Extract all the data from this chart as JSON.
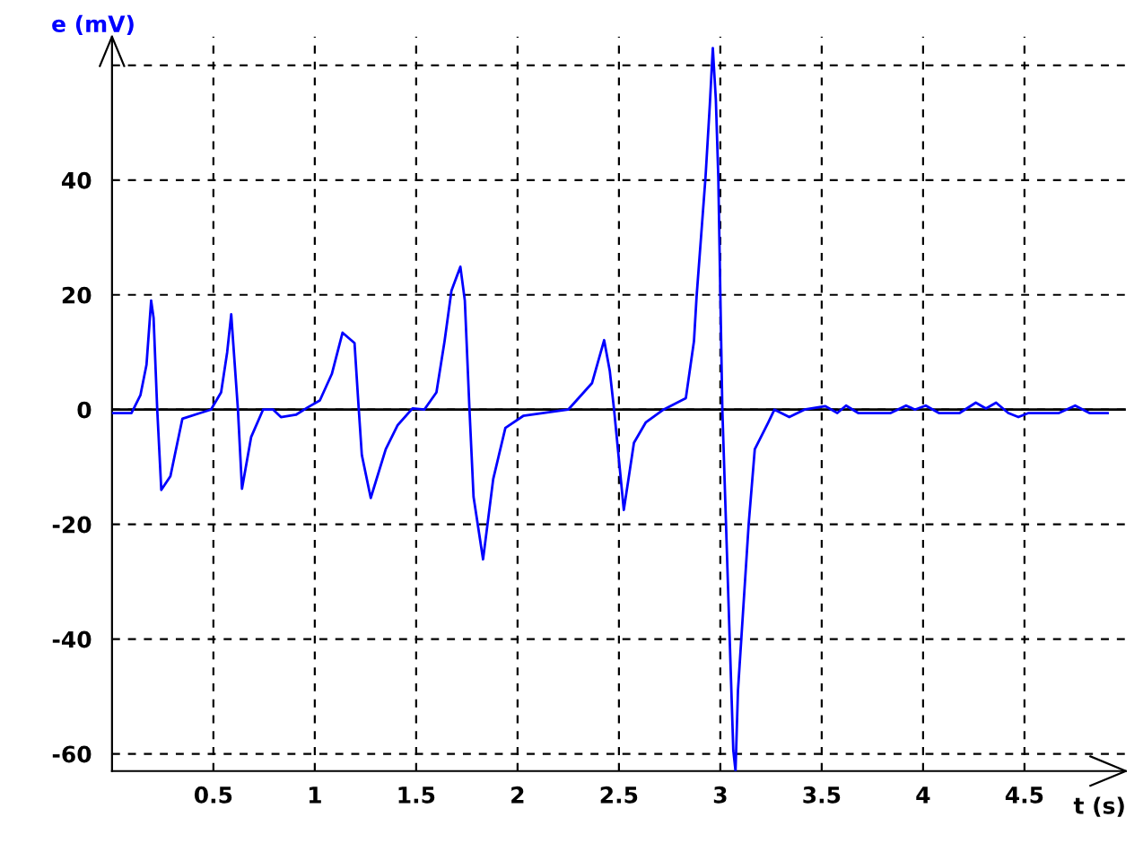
{
  "chart_data": {
    "type": "line",
    "ylabel": "e (mV)",
    "xlabel": "t (s)",
    "xlim": [
      0,
      5
    ],
    "ylim": [
      -63,
      65
    ],
    "xticks": [
      0.5,
      1,
      1.5,
      2,
      2.5,
      3,
      3.5,
      4,
      4.5
    ],
    "yticks": [
      -60,
      -40,
      -20,
      0,
      20,
      40,
      {
        "value": 60,
        "label": null
      }
    ],
    "grid": true,
    "marker": "none",
    "line_style": "solid",
    "ref_lines": [
      {
        "axis": "y",
        "value": 0,
        "color": "#000000"
      }
    ],
    "series": [
      {
        "color": "#0000ff",
        "x": [
          0,
          0.096,
          0.14,
          0.17,
          0.193,
          0.205,
          0.223,
          0.243,
          0.288,
          0.347,
          0.435,
          0.488,
          0.538,
          0.568,
          0.588,
          0.597,
          0.621,
          0.641,
          0.686,
          0.745,
          0.795,
          0.833,
          0.907,
          0.966,
          1.025,
          1.084,
          1.137,
          1.196,
          1.217,
          1.232,
          1.276,
          1.35,
          1.409,
          1.482,
          1.54,
          1.6,
          1.64,
          1.674,
          1.718,
          1.74,
          1.763,
          1.783,
          1.83,
          1.88,
          1.94,
          2.028,
          2.25,
          2.367,
          2.427,
          2.455,
          2.476,
          2.524,
          2.574,
          2.633,
          2.72,
          2.83,
          2.87,
          2.883,
          2.927,
          2.948,
          2.963,
          2.978,
          2.99,
          3.01,
          3.046,
          3.064,
          3.075,
          3.087,
          3.104,
          3.14,
          3.17,
          3.237,
          3.267,
          3.34,
          3.415,
          3.518,
          3.577,
          3.62,
          3.68,
          3.84,
          3.916,
          3.96,
          4.013,
          4.078,
          4.18,
          4.26,
          4.31,
          4.36,
          4.42,
          4.47,
          4.52,
          4.67,
          4.75,
          4.82,
          4.91
        ],
        "values": [
          -0.6,
          -0.6,
          2.5,
          7.8,
          19,
          16,
          0,
          -14,
          -11.6,
          -1.6,
          -0.6,
          0,
          3,
          10,
          16.6,
          12,
          0,
          -13.8,
          -4.8,
          0,
          0,
          -1.3,
          -0.9,
          0.4,
          1.6,
          6.2,
          13.4,
          11.6,
          0,
          -7.9,
          -15.4,
          -6.9,
          -2.7,
          0.2,
          0,
          3,
          11.9,
          20.7,
          24.9,
          19,
          0,
          -15.2,
          -26.1,
          -12.1,
          -3.2,
          -1.1,
          0,
          4.6,
          12.1,
          6.7,
          0,
          -17.5,
          -5.8,
          -2.2,
          0,
          2,
          11.9,
          19.7,
          40.5,
          53,
          63,
          54,
          40.6,
          0,
          -39.7,
          -59.4,
          -63,
          -49,
          -39.7,
          -19.9,
          -6.9,
          -2.2,
          0,
          -1.3,
          0,
          0.6,
          -0.6,
          0.7,
          -0.6,
          -0.6,
          0.7,
          0,
          0.7,
          -0.6,
          -0.6,
          1.2,
          0.2,
          1.2,
          -0.6,
          -1.3,
          -0.6,
          -0.6,
          0.7,
          -0.6,
          -0.6
        ]
      }
    ]
  }
}
